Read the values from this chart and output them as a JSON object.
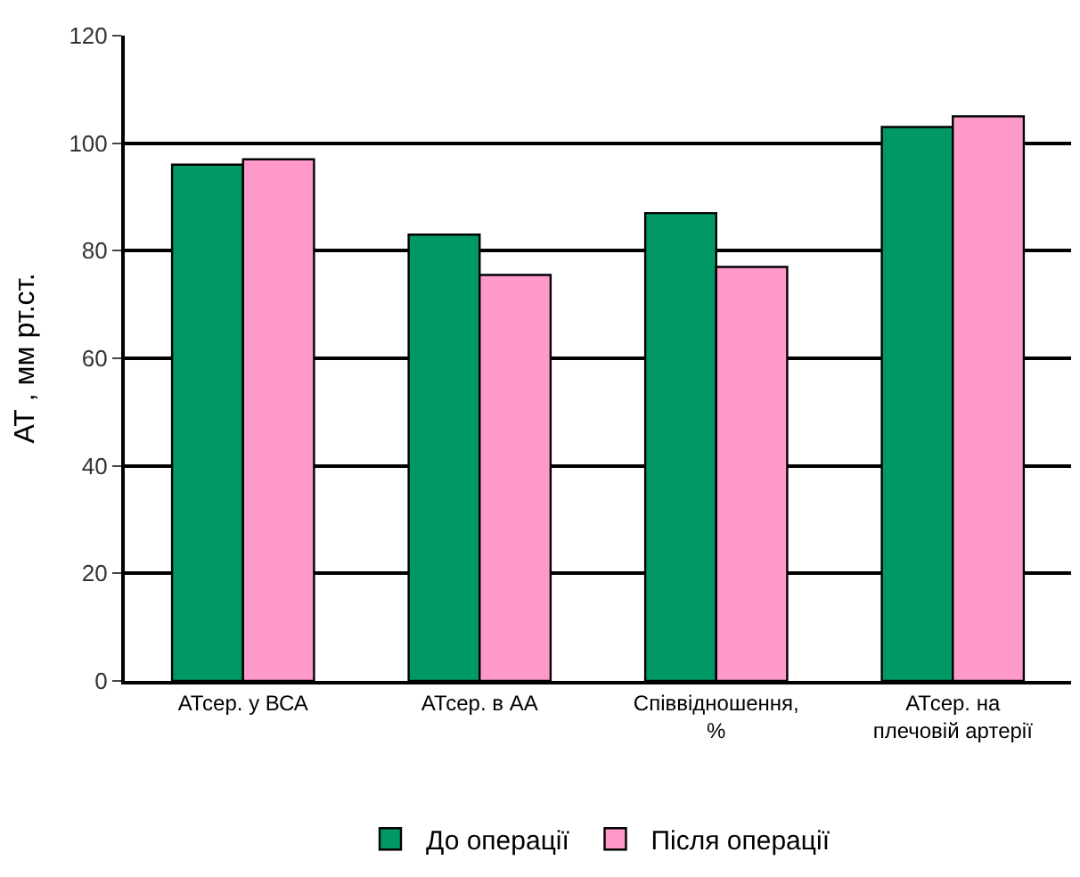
{
  "chart_data": {
    "type": "bar",
    "ylabel": "АТ , мм рт.ст.",
    "categories": [
      "АТсер. у ВСА",
      "АТсер. в АА",
      "Співвідношення, %",
      "АТсер. на плечовій артерії"
    ],
    "series": [
      {
        "name": "До операції",
        "color": "#009966",
        "values": [
          96,
          83,
          87,
          103
        ]
      },
      {
        "name": "Після операції",
        "color": "#ff99cc",
        "values": [
          97,
          75.5,
          77,
          105
        ]
      }
    ],
    "ylim": [
      0,
      120
    ],
    "yticks": [
      0,
      20,
      40,
      60,
      80,
      100,
      120
    ],
    "grid": "y",
    "legend": "bottom"
  }
}
